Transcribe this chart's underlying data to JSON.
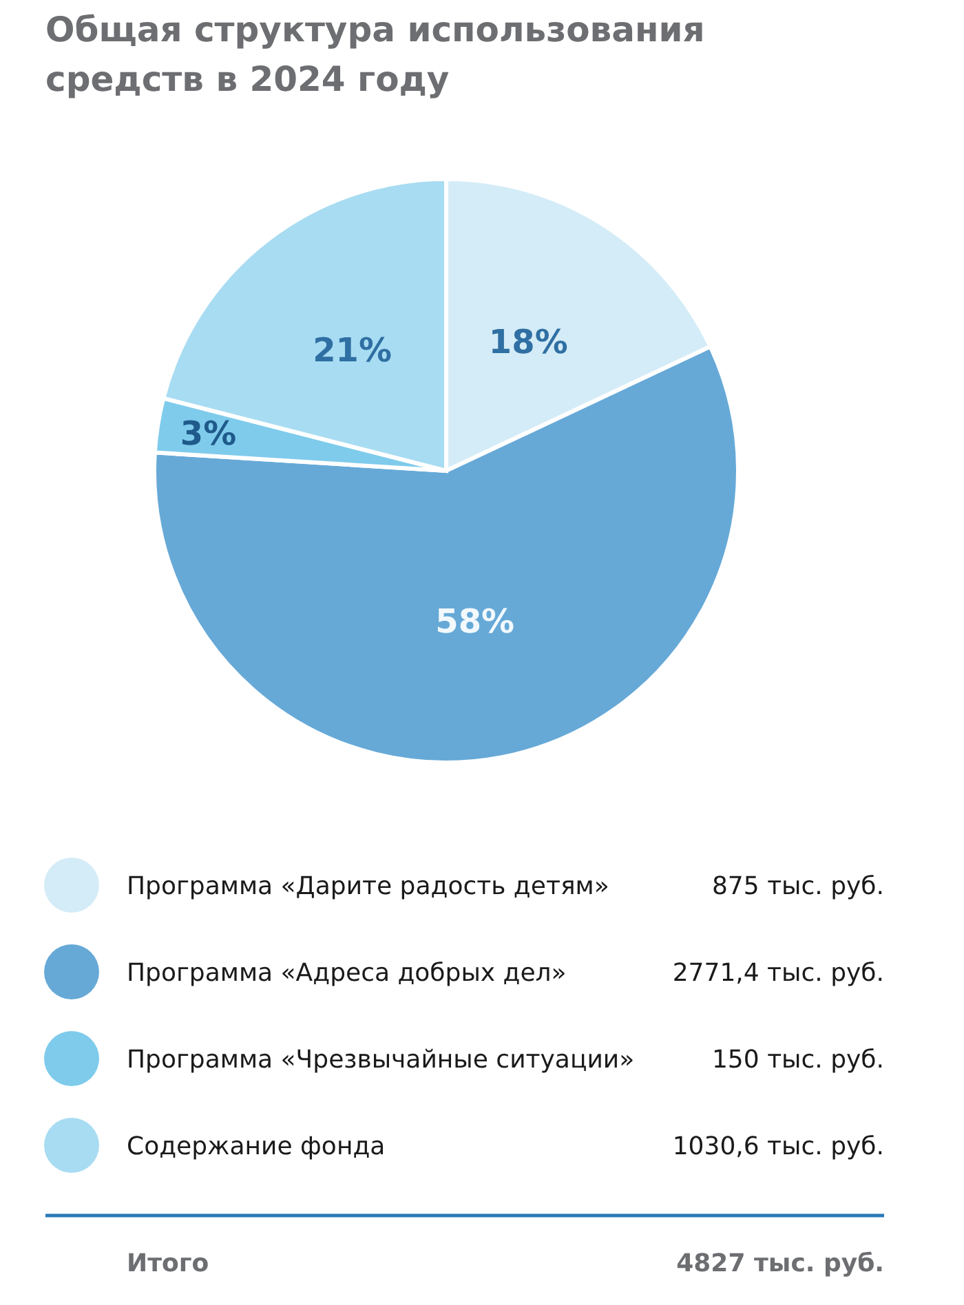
{
  "chart_data": {
    "type": "pie",
    "title": "Общая структура использования средств в 2024 году",
    "categories": [
      "Программа «Дарите радость детям»",
      "Программа «Адреса добрых дел»",
      "Программа «Чрезвычайные ситуации»",
      "Содержание фонда"
    ],
    "values": [
      18,
      58,
      3,
      21
    ],
    "value_labels": [
      "18%",
      "58%",
      "3%",
      "21%"
    ],
    "colors": [
      "#d4ecf7",
      "#66a9d7",
      "#7fcbec",
      "#a8dcf2"
    ],
    "legend": "bottom",
    "annotations": [
      "875 тыс. руб.",
      "2771,4 тыс. руб.",
      "150 тыс. руб.",
      "1030,6 тыс. руб.",
      "Итого",
      "4827 тыс. руб."
    ]
  }
}
